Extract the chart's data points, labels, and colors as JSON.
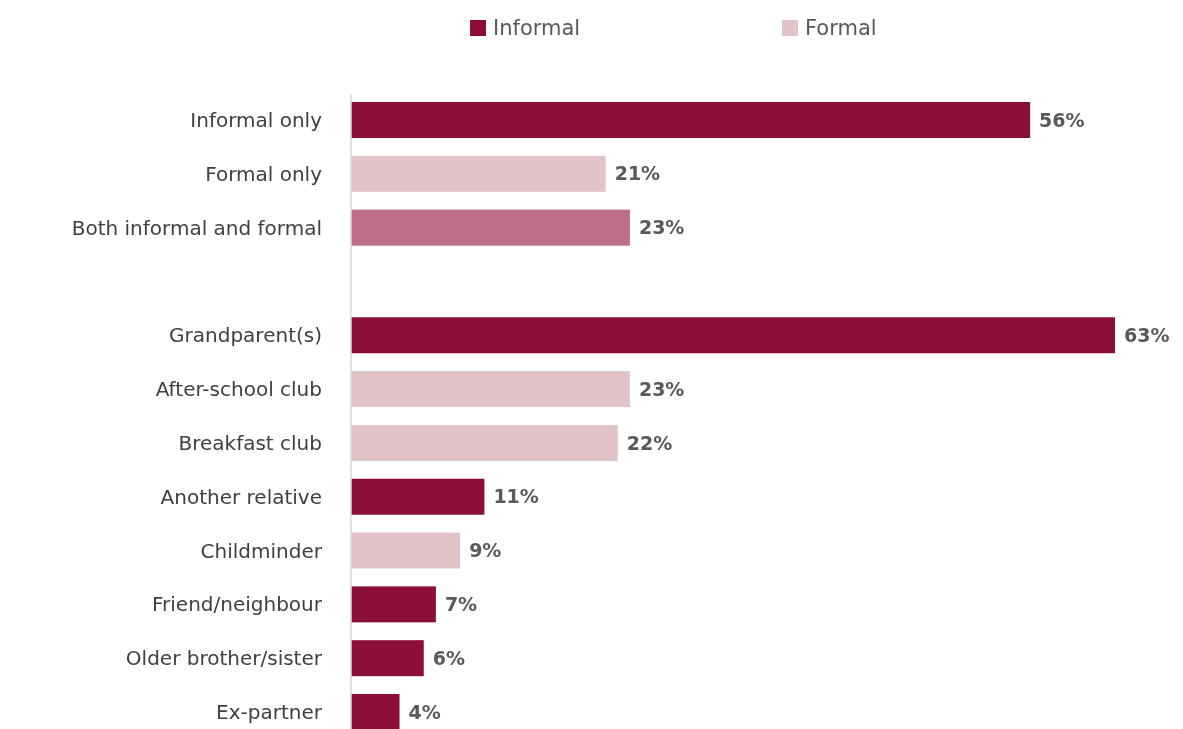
{
  "chart_data": {
    "type": "bar",
    "orientation": "horizontal",
    "legend": "top",
    "grid": false,
    "categories": [
      "Informal only",
      "Formal only",
      "Both informal and formal",
      null,
      "Grandparent(s)",
      "After-school club",
      "Breakfast club",
      "Another relative",
      "Childminder",
      "Friend/neighbour",
      "Older brother/sister",
      "Ex-partner"
    ],
    "series": [
      {
        "name": "Informal",
        "color": "#8c0f3a",
        "values": [
          56,
          null,
          null,
          null,
          63,
          null,
          null,
          11,
          null,
          7,
          6,
          4
        ],
        "value_labels": [
          "56%",
          null,
          null,
          null,
          "63%",
          null,
          null,
          "11%",
          null,
          "7%",
          "6%",
          "4%"
        ]
      },
      {
        "name": "Formal",
        "color": "#e2c4c8",
        "values": [
          null,
          21,
          null,
          null,
          null,
          23,
          22,
          null,
          9,
          null,
          null,
          null
        ],
        "value_labels": [
          null,
          "21%",
          null,
          null,
          null,
          "23%",
          "22%",
          null,
          "9%",
          null,
          null,
          null
        ]
      },
      {
        "color": "#bc6f87",
        "values": [
          null,
          null,
          23,
          null,
          null,
          null,
          null,
          null,
          null,
          null,
          null,
          null
        ],
        "value_labels": [
          null,
          null,
          "23%",
          null,
          null,
          null,
          null,
          null,
          null,
          null,
          null,
          null
        ]
      }
    ]
  }
}
